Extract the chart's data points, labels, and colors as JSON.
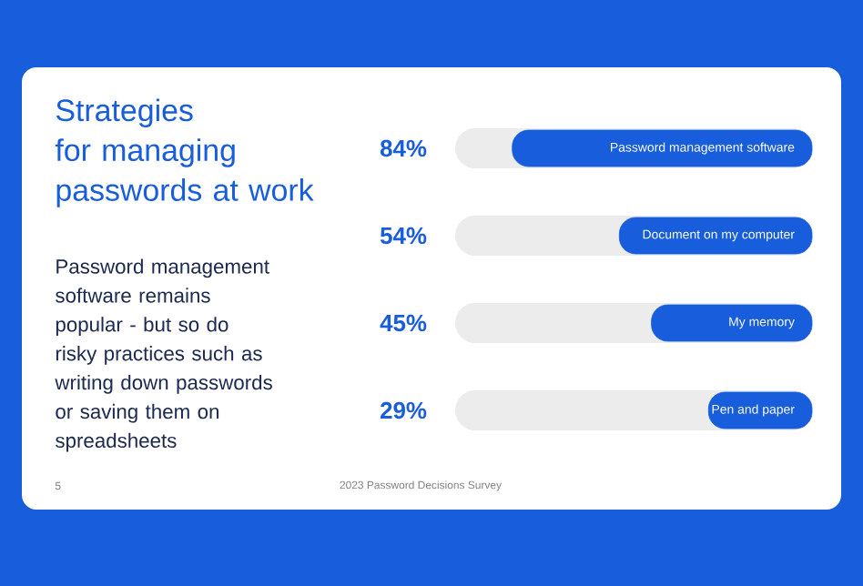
{
  "chart_data": {
    "type": "bar",
    "orientation": "horizontal",
    "title": "Strategies for managing passwords at work",
    "subtitle": "Password management software remains popular - but so do risky practices such as writing down passwords or saving them on spreadsheets",
    "categories": [
      "Password management software",
      "Document on my computer",
      "My memory",
      "Pen and paper"
    ],
    "values": [
      84,
      54,
      45,
      29
    ],
    "value_labels": [
      "84%",
      "54%",
      "45%",
      "29%"
    ],
    "color": "#175ddc",
    "xlim": [
      100,
      0
    ],
    "annotations": [
      "5",
      "2023 Password Decisions Survey"
    ]
  }
}
